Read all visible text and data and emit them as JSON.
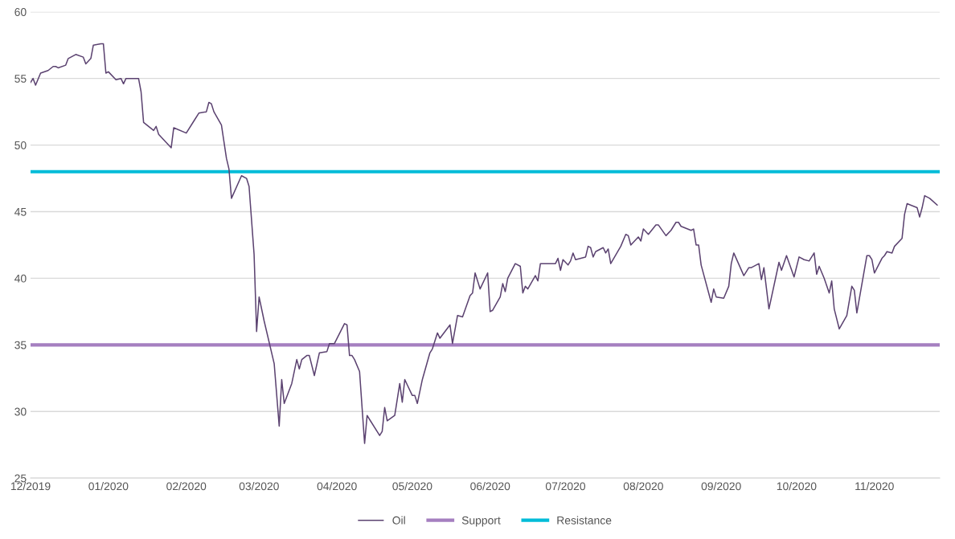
{
  "chart_data": {
    "type": "line",
    "x": [
      "2019-12-01",
      "2019-12-02",
      "2019-12-03",
      "2019-12-05",
      "2019-12-08",
      "2019-12-10",
      "2019-12-11",
      "2019-12-12",
      "2019-12-15",
      "2019-12-16",
      "2019-12-19",
      "2019-12-22",
      "2019-12-23",
      "2019-12-25",
      "2019-12-26",
      "2019-12-29",
      "2019-12-30",
      "2019-12-31",
      "2020-01-01",
      "2020-01-04",
      "2020-01-06",
      "2020-01-07",
      "2020-01-08",
      "2020-01-13",
      "2020-01-14",
      "2020-01-15",
      "2020-01-19",
      "2020-01-20",
      "2020-01-21",
      "2020-01-26",
      "2020-01-27",
      "2020-02-01",
      "2020-02-04",
      "2020-02-06",
      "2020-02-09",
      "2020-02-10",
      "2020-02-11",
      "2020-02-12",
      "2020-02-15",
      "2020-02-17",
      "2020-02-18",
      "2020-02-19",
      "2020-02-23",
      "2020-02-25",
      "2020-02-26",
      "2020-02-28",
      "2020-02-29",
      "2020-03-01",
      "2020-03-03",
      "2020-03-07",
      "2020-03-09",
      "2020-03-10",
      "2020-03-11",
      "2020-03-14",
      "2020-03-16",
      "2020-03-17",
      "2020-03-18",
      "2020-03-20",
      "2020-03-21",
      "2020-03-23",
      "2020-03-25",
      "2020-03-28",
      "2020-03-29",
      "2020-03-31",
      "2020-04-04",
      "2020-04-05",
      "2020-04-06",
      "2020-04-07",
      "2020-04-08",
      "2020-04-10",
      "2020-04-12",
      "2020-04-13",
      "2020-04-18",
      "2020-04-19",
      "2020-04-20",
      "2020-04-21",
      "2020-04-24",
      "2020-04-26",
      "2020-04-27",
      "2020-04-28",
      "2020-05-01",
      "2020-05-02",
      "2020-05-03",
      "2020-05-05",
      "2020-05-08",
      "2020-05-09",
      "2020-05-11",
      "2020-05-12",
      "2020-05-16",
      "2020-05-17",
      "2020-05-19",
      "2020-05-21",
      "2020-05-24",
      "2020-05-25",
      "2020-05-26",
      "2020-05-28",
      "2020-05-31",
      "2020-06-01",
      "2020-06-02",
      "2020-06-05",
      "2020-06-06",
      "2020-06-07",
      "2020-06-08",
      "2020-06-11",
      "2020-06-13",
      "2020-06-14",
      "2020-06-15",
      "2020-06-16",
      "2020-06-19",
      "2020-06-20",
      "2020-06-21",
      "2020-06-27",
      "2020-06-28",
      "2020-06-29",
      "2020-06-30",
      "2020-07-02",
      "2020-07-03",
      "2020-07-04",
      "2020-07-05",
      "2020-07-09",
      "2020-07-10",
      "2020-07-11",
      "2020-07-12",
      "2020-07-13",
      "2020-07-16",
      "2020-07-17",
      "2020-07-18",
      "2020-07-19",
      "2020-07-23",
      "2020-07-25",
      "2020-07-26",
      "2020-07-27",
      "2020-07-30",
      "2020-07-31",
      "2020-08-01",
      "2020-08-03",
      "2020-08-06",
      "2020-08-07",
      "2020-08-10",
      "2020-08-12",
      "2020-08-14",
      "2020-08-15",
      "2020-08-16",
      "2020-08-20",
      "2020-08-21",
      "2020-08-22",
      "2020-08-23",
      "2020-08-24",
      "2020-08-28",
      "2020-08-29",
      "2020-08-30",
      "2020-09-02",
      "2020-09-04",
      "2020-09-05",
      "2020-09-06",
      "2020-09-10",
      "2020-09-11",
      "2020-09-12",
      "2020-09-13",
      "2020-09-16",
      "2020-09-17",
      "2020-09-18",
      "2020-09-20",
      "2020-09-24",
      "2020-09-25",
      "2020-09-27",
      "2020-09-30",
      "2020-10-02",
      "2020-10-04",
      "2020-10-06",
      "2020-10-08",
      "2020-10-09",
      "2020-10-10",
      "2020-10-12",
      "2020-10-14",
      "2020-10-15",
      "2020-10-16",
      "2020-10-18",
      "2020-10-21",
      "2020-10-23",
      "2020-10-24",
      "2020-10-25",
      "2020-10-29",
      "2020-10-30",
      "2020-10-31",
      "2020-11-01",
      "2020-11-04",
      "2020-11-05",
      "2020-11-06",
      "2020-11-08",
      "2020-11-09",
      "2020-11-12",
      "2020-11-13",
      "2020-11-14",
      "2020-11-18",
      "2020-11-19",
      "2020-11-20",
      "2020-11-21",
      "2020-11-23",
      "2020-11-26"
    ],
    "series": [
      {
        "name": "Oil",
        "color": "#5b4270",
        "values": [
          54.7,
          55.0,
          54.5,
          55.4,
          55.6,
          55.9,
          55.9,
          55.8,
          56.0,
          56.5,
          56.8,
          56.6,
          56.1,
          56.5,
          57.5,
          57.6,
          57.6,
          55.4,
          55.5,
          54.9,
          55.0,
          54.6,
          55.0,
          55.0,
          54.0,
          51.7,
          51.1,
          51.4,
          50.8,
          49.8,
          51.3,
          50.9,
          51.8,
          52.4,
          52.5,
          53.2,
          53.1,
          52.5,
          51.5,
          49.0,
          48.2,
          46.0,
          47.7,
          47.5,
          46.9,
          41.8,
          36.0,
          38.6,
          36.8,
          33.6,
          28.9,
          32.4,
          30.6,
          32.1,
          33.9,
          33.2,
          33.9,
          34.2,
          34.2,
          32.7,
          34.4,
          34.5,
          35.1,
          35.1,
          36.6,
          36.5,
          34.2,
          34.2,
          33.9,
          33.0,
          27.6,
          29.7,
          28.2,
          28.5,
          30.3,
          29.3,
          29.7,
          32.1,
          30.7,
          32.4,
          31.2,
          31.2,
          30.6,
          32.4,
          34.4,
          34.7,
          35.9,
          35.5,
          36.5,
          35.1,
          37.2,
          37.1,
          38.7,
          38.9,
          40.4,
          39.2,
          40.4,
          37.5,
          37.6,
          38.6,
          39.6,
          39.0,
          40.0,
          41.1,
          40.9,
          38.9,
          39.4,
          39.2,
          40.2,
          39.8,
          41.1,
          41.1,
          41.5,
          40.6,
          41.4,
          41.0,
          41.3,
          41.9,
          41.4,
          41.6,
          42.4,
          42.3,
          41.6,
          42.0,
          42.3,
          41.9,
          42.2,
          41.1,
          42.4,
          43.3,
          43.2,
          42.5,
          43.1,
          42.8,
          43.7,
          43.3,
          44.0,
          44.0,
          43.2,
          43.6,
          44.2,
          44.2,
          43.9,
          43.6,
          43.7,
          42.5,
          42.5,
          41.0,
          38.2,
          39.2,
          38.6,
          38.5,
          39.4,
          41.1,
          41.9,
          40.2,
          40.5,
          40.8,
          40.8,
          41.1,
          39.9,
          40.8,
          37.7,
          41.2,
          40.6,
          41.7,
          40.1,
          41.6,
          41.4,
          41.3,
          41.9,
          40.3,
          40.9,
          40.0,
          38.9,
          39.8,
          37.7,
          36.2,
          37.2,
          39.4,
          39.1,
          37.4,
          41.7,
          41.7,
          41.4,
          40.4,
          41.5,
          41.7,
          42.0,
          41.9,
          42.4,
          43.0,
          44.8,
          45.6,
          45.3,
          44.6,
          45.3,
          46.2,
          46.0,
          45.5
        ]
      }
    ],
    "ref_lines": [
      {
        "axis": "y",
        "value": 35,
        "label": "Support",
        "color": "#a57fc0"
      },
      {
        "axis": "y",
        "value": 48,
        "label": "Resistance",
        "color": "#00bcd8"
      }
    ],
    "xlim": [
      "2019-12-01",
      "2020-11-27"
    ],
    "xticks": [
      {
        "value": "2019-12-01",
        "label": "12/2019"
      },
      {
        "value": "2020-01-01",
        "label": "01/2020"
      },
      {
        "value": "2020-02-01",
        "label": "02/2020"
      },
      {
        "value": "2020-03-01",
        "label": "03/2020"
      },
      {
        "value": "2020-04-01",
        "label": "04/2020"
      },
      {
        "value": "2020-05-01",
        "label": "05/2020"
      },
      {
        "value": "2020-06-01",
        "label": "06/2020"
      },
      {
        "value": "2020-07-01",
        "label": "07/2020"
      },
      {
        "value": "2020-08-01",
        "label": "08/2020"
      },
      {
        "value": "2020-09-01",
        "label": "09/2020"
      },
      {
        "value": "2020-10-01",
        "label": "10/2020"
      },
      {
        "value": "2020-11-01",
        "label": "11/2020"
      }
    ],
    "ylim": [
      25,
      60
    ],
    "yticks": [
      25,
      30,
      35,
      40,
      45,
      50,
      55,
      60
    ],
    "grid": "y",
    "legend": "bottom",
    "marker": "none",
    "line_style": "solid"
  }
}
